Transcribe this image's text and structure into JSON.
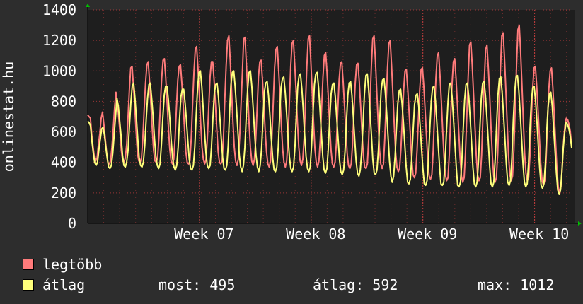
{
  "colors": {
    "background": "#2d2d2d",
    "plot_bg": "#1e1e1e",
    "grid": "#ff4a4a",
    "axis_text": "#ffffff",
    "max_series": "#ff7b7b",
    "avg_series": "#ffff7b",
    "arrow": "#00c000"
  },
  "ylabel": "onlinestat.hu",
  "legend": {
    "max_label": "legtöbb",
    "avg_label": "átlag",
    "stats": [
      {
        "label": "most: 495"
      },
      {
        "label": "átlag: 592"
      },
      {
        "label": "max: 1012"
      }
    ]
  },
  "chart_data": {
    "type": "line",
    "title": "",
    "ylabel": "onlinestat.hu",
    "ylim": [
      0,
      1400
    ],
    "yticks": [
      0,
      200,
      400,
      600,
      800,
      1000,
      1200,
      1400
    ],
    "xticks": [
      {
        "label": "Week 07",
        "day": 7
      },
      {
        "label": "Week 08",
        "day": 14
      },
      {
        "label": "Week 09",
        "day": 21
      },
      {
        "label": "Week 10",
        "day": 28
      }
    ],
    "xlim_days": [
      0,
      30.5
    ],
    "grid": true,
    "series": [
      {
        "name": "legtöbb",
        "color": "#ff7b7b",
        "daily_peaks": [
          710,
          690,
          730,
          860,
          1030,
          1060,
          1080,
          1040,
          1160,
          1060,
          1230,
          1220,
          1070,
          1160,
          1200,
          1230,
          1120,
          1060,
          1050,
          1230,
          1200,
          1010,
          1020,
          1120,
          1080,
          1190,
          1170,
          1250,
          1300,
          1030,
          1020,
          690
        ],
        "daily_troughs": [
          640,
          410,
          390,
          380,
          400,
          400,
          380,
          370,
          380,
          380,
          370,
          370,
          370,
          370,
          370,
          370,
          370,
          360,
          350,
          360,
          300,
          290,
          280,
          280,
          270,
          280,
          270,
          280,
          280,
          250,
          200,
          300
        ],
        "values": [
          710,
          700,
          690,
          580,
          500,
          430,
          410,
          430,
          520,
          590,
          690,
          730,
          650,
          560,
          470,
          400,
          390,
          410,
          500,
          620,
          760,
          860,
          800,
          700,
          600,
          480,
          410,
          400,
          430,
          520,
          700,
          880,
          1020,
          1030,
          900,
          760,
          600,
          460,
          410,
          400,
          430,
          560,
          750,
          920,
          1040,
          1060,
          930,
          780,
          620,
          480,
          410,
          400,
          430,
          570,
          770,
          950,
          1070,
          1080,
          960,
          800,
          630,
          490,
          410,
          390,
          420,
          560,
          760,
          940,
          1030,
          1040,
          920,
          780,
          620,
          470,
          400,
          390,
          410,
          560,
          780,
          990,
          1140,
          1160,
          1020,
          850,
          660,
          500,
          420,
          390,
          420,
          560,
          760,
          960,
          1060,
          1060,
          940,
          780,
          620,
          470,
          400,
          390,
          410,
          570,
          820,
          1040,
          1200,
          1230,
          1070,
          870,
          670,
          500,
          410,
          380,
          420,
          560,
          770,
          980,
          1210,
          1220,
          1050,
          860,
          660,
          500,
          410,
          380,
          420,
          550,
          750,
          960,
          1060,
          1070,
          940,
          780,
          610,
          470,
          390,
          370,
          410,
          560,
          790,
          1020,
          1140,
          1160,
          1010,
          840,
          650,
          490,
          400,
          370,
          410,
          560,
          790,
          1030,
          1180,
          1200,
          1040,
          860,
          660,
          500,
          410,
          380,
          420,
          560,
          790,
          1030,
          1210,
          1230,
          1060,
          860,
          660,
          490,
          400,
          370,
          410,
          550,
          760,
          960,
          1100,
          1120,
          990,
          820,
          640,
          480,
          390,
          370,
          400,
          530,
          740,
          940,
          1050,
          1060,
          930,
          770,
          610,
          460,
          380,
          360,
          390,
          520,
          720,
          920,
          1040,
          1050,
          930,
          770,
          600,
          450,
          370,
          360,
          390,
          550,
          790,
          1030,
          1210,
          1230,
          1070,
          870,
          670,
          490,
          390,
          360,
          390,
          560,
          790,
          1020,
          1180,
          1200,
          1040,
          850,
          650,
          470,
          370,
          340,
          360,
          490,
          680,
          870,
          1000,
          1010,
          890,
          740,
          580,
          420,
          320,
          300,
          330,
          480,
          690,
          880,
          1010,
          1020,
          900,
          740,
          570,
          410,
          310,
          290,
          320,
          480,
          720,
          950,
          1100,
          1120,
          980,
          810,
          620,
          440,
          320,
          280,
          300,
          460,
          700,
          910,
          1060,
          1080,
          950,
          780,
          600,
          430,
          310,
          270,
          300,
          460,
          710,
          960,
          1170,
          1190,
          1040,
          850,
          650,
          450,
          320,
          280,
          300,
          450,
          700,
          940,
          1140,
          1170,
          1020,
          840,
          630,
          440,
          310,
          270,
          300,
          460,
          740,
          1010,
          1230,
          1250,
          1090,
          880,
          660,
          450,
          320,
          280,
          310,
          480,
          760,
          1040,
          1270,
          1300,
          1130,
          910,
          680,
          460,
          330,
          280,
          300,
          450,
          690,
          890,
          1020,
          1030,
          900,
          740,
          560,
          390,
          280,
          250,
          280,
          420,
          670,
          880,
          1000,
          1020,
          890,
          720,
          540,
          360,
          240,
          200,
          240,
          380,
          540,
          640,
          690,
          680,
          650,
          600,
          500
        ]
      },
      {
        "name": "átlag",
        "color": "#ffff7b",
        "daily_peaks": [
          670,
          630,
          700,
          820,
          920,
          920,
          900,
          880,
          1000,
          920,
          1000,
          1000,
          930,
          960,
          980,
          990,
          950,
          920,
          930,
          980,
          950,
          880,
          850,
          900,
          920,
          920,
          930,
          960,
          970,
          900,
          860,
          660
        ],
        "daily_troughs": [
          620,
          380,
          370,
          360,
          380,
          370,
          360,
          350,
          360,
          350,
          340,
          350,
          340,
          350,
          340,
          340,
          330,
          320,
          310,
          320,
          270,
          260,
          250,
          250,
          240,
          250,
          240,
          250,
          250,
          230,
          190,
          270
        ],
        "values": [
          670,
          660,
          640,
          540,
          460,
          400,
          380,
          400,
          480,
          550,
          620,
          630,
          580,
          500,
          430,
          370,
          360,
          380,
          460,
          580,
          700,
          820,
          770,
          670,
          570,
          450,
          380,
          370,
          400,
          480,
          640,
          790,
          900,
          920,
          820,
          690,
          550,
          430,
          380,
          370,
          400,
          510,
          680,
          820,
          910,
          920,
          820,
          700,
          560,
          440,
          380,
          360,
          390,
          520,
          690,
          840,
          900,
          900,
          810,
          690,
          550,
          430,
          370,
          350,
          380,
          500,
          680,
          830,
          880,
          880,
          790,
          670,
          540,
          420,
          360,
          350,
          380,
          500,
          710,
          890,
          990,
          1000,
          900,
          760,
          600,
          460,
          380,
          360,
          380,
          500,
          690,
          850,
          910,
          920,
          830,
          700,
          560,
          430,
          360,
          350,
          380,
          510,
          730,
          910,
          990,
          1000,
          900,
          760,
          600,
          450,
          370,
          340,
          380,
          500,
          700,
          880,
          990,
          1000,
          900,
          750,
          590,
          450,
          370,
          340,
          380,
          490,
          680,
          860,
          920,
          930,
          840,
          710,
          560,
          430,
          350,
          340,
          370,
          500,
          700,
          890,
          950,
          960,
          860,
          720,
          570,
          440,
          360,
          340,
          370,
          500,
          710,
          900,
          970,
          980,
          880,
          740,
          580,
          440,
          360,
          340,
          370,
          510,
          720,
          910,
          980,
          990,
          890,
          750,
          590,
          440,
          350,
          330,
          360,
          490,
          680,
          850,
          910,
          920,
          830,
          700,
          560,
          420,
          340,
          320,
          350,
          470,
          660,
          840,
          920,
          930,
          840,
          700,
          550,
          410,
          330,
          310,
          350,
          470,
          660,
          850,
          970,
          980,
          880,
          730,
          580,
          420,
          330,
          320,
          350,
          480,
          690,
          870,
          940,
          950,
          860,
          720,
          560,
          410,
          310,
          270,
          310,
          440,
          620,
          790,
          870,
          880,
          790,
          660,
          520,
          370,
          270,
          260,
          290,
          430,
          610,
          780,
          840,
          850,
          770,
          640,
          500,
          360,
          260,
          250,
          280,
          420,
          620,
          800,
          890,
          900,
          810,
          670,
          520,
          370,
          260,
          250,
          270,
          410,
          610,
          790,
          910,
          920,
          830,
          690,
          530,
          370,
          250,
          240,
          270,
          400,
          620,
          810,
          910,
          920,
          830,
          690,
          530,
          370,
          260,
          240,
          270,
          410,
          630,
          820,
          920,
          930,
          840,
          700,
          540,
          380,
          260,
          240,
          270,
          420,
          650,
          840,
          950,
          960,
          860,
          710,
          550,
          390,
          270,
          250,
          280,
          430,
          670,
          860,
          960,
          970,
          870,
          720,
          560,
          390,
          270,
          240,
          260,
          400,
          620,
          800,
          890,
          900,
          810,
          670,
          510,
          360,
          250,
          230,
          260,
          380,
          590,
          760,
          850,
          860,
          770,
          630,
          480,
          330,
          220,
          190,
          220,
          340,
          500,
          600,
          660,
          650,
          620,
          570,
          495
        ]
      }
    ]
  }
}
